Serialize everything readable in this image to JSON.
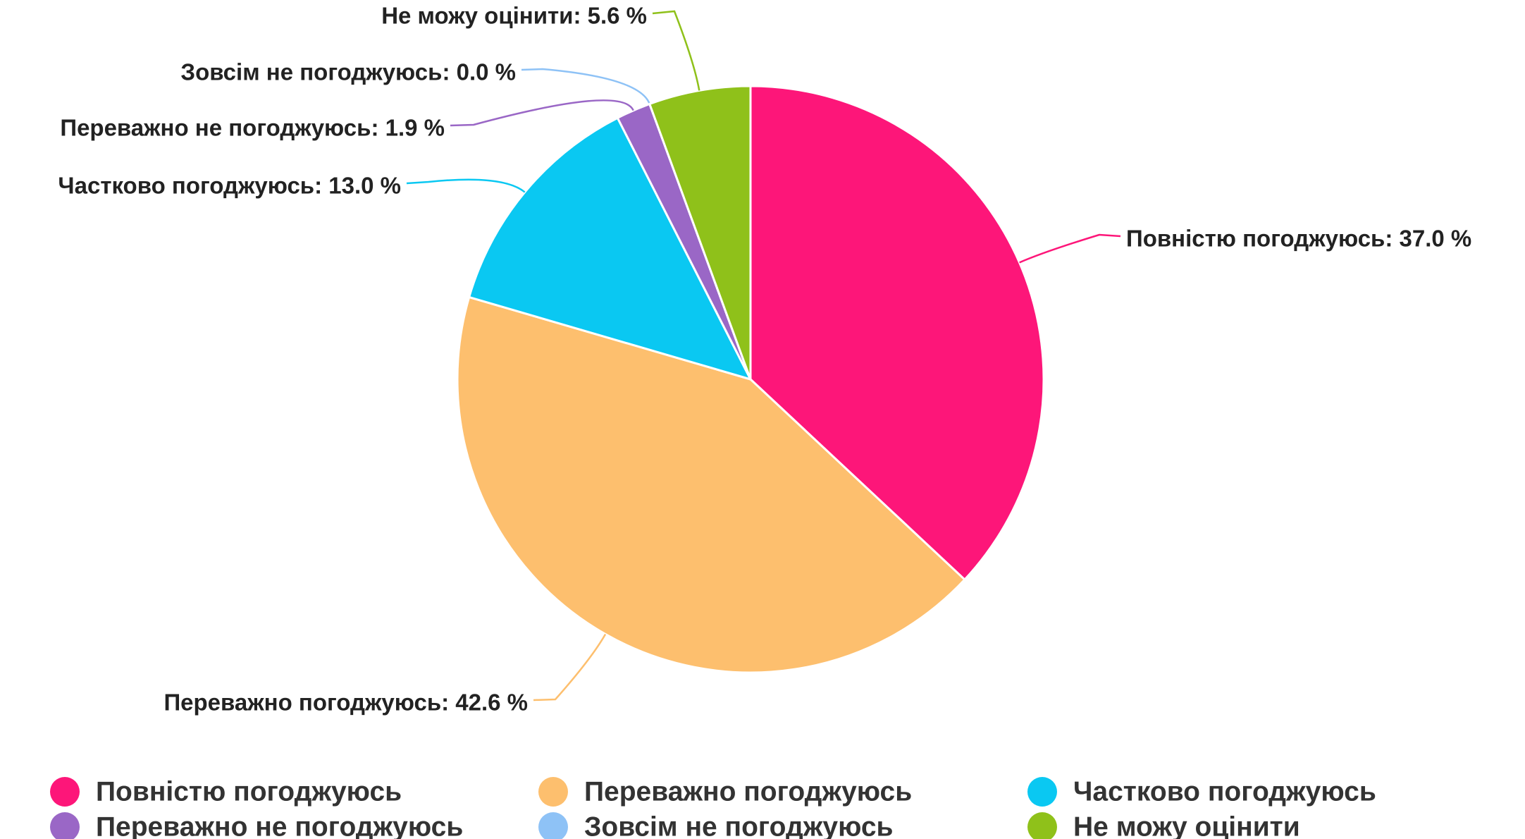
{
  "chart_data": {
    "type": "pie",
    "categories": [
      "Повністю погоджуюсь",
      "Переважно погоджуюсь",
      "Частково погоджуюсь",
      "Переважно не погоджуюсь",
      "Зовсім не погоджуюсь",
      "Не можу оцінити"
    ],
    "values": [
      37.0,
      42.6,
      13.0,
      1.9,
      0.0,
      5.6
    ],
    "value_labels": [
      "Повністю погоджуюсь: 37.0 %",
      "Переважно погоджуюсь: 42.6 %",
      "Частково погоджуюсь: 13.0 %",
      "Переважно не погоджуюсь: 1.9 %",
      "Зовсім не погоджуюсь: 0.0 %",
      "Не можу оцінити: 5.6 %"
    ],
    "colors": [
      "#fd1679",
      "#fdbf6e",
      "#0ac8f2",
      "#9a67c6",
      "#8ec2f6",
      "#8fc11a"
    ],
    "legend": "bottom"
  }
}
